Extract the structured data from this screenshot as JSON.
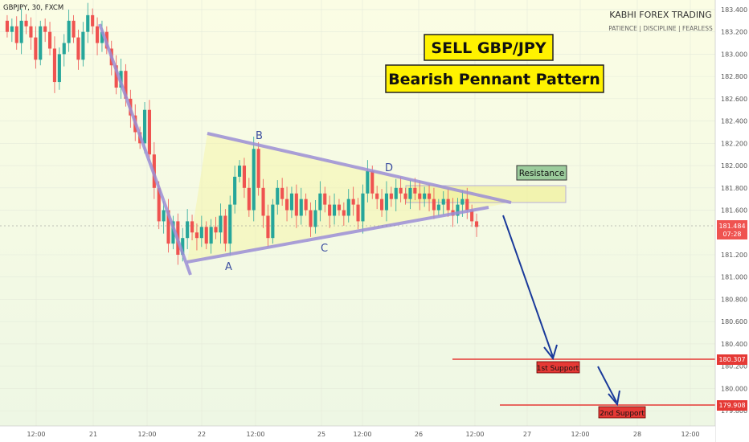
{
  "header": {
    "symbol": "GBPJPY, 30, FXCM"
  },
  "brand": {
    "name": "KABHI FOREX TRADING",
    "tagline": "PATIENCE | DISCIPLINE | FEARLESS"
  },
  "annotations": {
    "title1": "SELL GBP/JPY",
    "title2": "Bearish Pennant Pattern",
    "resistance": "Resistance",
    "support1": "1st Support",
    "support2": "2nd Support",
    "points": [
      "A",
      "B",
      "C",
      "D"
    ]
  },
  "price_tag": {
    "price": "181.484",
    "timer": "07:28"
  },
  "colors": {
    "up": "#26a69a",
    "down": "#ef5350",
    "support": "#e53935",
    "pennant": "#9c8fd6",
    "arrow": "#1a3a9a",
    "label_yellow": "#fff200",
    "resistance_bg": "#9ccc9c"
  },
  "chart_data": {
    "type": "candlestick",
    "ylim": [
      179.7,
      183.45
    ],
    "y_ticks": [
      "183.400",
      "183.200",
      "183.000",
      "182.800",
      "182.600",
      "182.400",
      "182.200",
      "182.000",
      "181.800",
      "181.600",
      "181.200",
      "181.000",
      "180.800",
      "180.600",
      "180.400",
      "180.200",
      "180.000",
      "179.800"
    ],
    "x_ticks": [
      "12:00",
      "21",
      "12:00",
      "22",
      "12:00",
      "25",
      "12:00",
      "26",
      "12:00",
      "27",
      "12:00",
      "28",
      "12:00"
    ],
    "support_levels": [
      {
        "name": "1st Support",
        "price": 180.307,
        "label": "180.307"
      },
      {
        "name": "2nd Support",
        "price": 179.908,
        "label": "179.908"
      }
    ],
    "resistance_zone": [
      181.7,
      181.85
    ],
    "current_price": 181.484,
    "ohlc_points": [
      [
        183.3,
        183.2
      ],
      [
        183.2,
        183.25
      ],
      [
        183.25,
        183.1
      ],
      [
        183.1,
        183.3
      ],
      [
        183.3,
        183.25
      ],
      [
        183.25,
        183.15
      ],
      [
        183.15,
        182.95
      ],
      [
        182.95,
        183.25
      ],
      [
        183.25,
        183.2
      ],
      [
        183.2,
        183.05
      ],
      [
        183.05,
        182.75
      ],
      [
        182.75,
        183.0
      ],
      [
        183.0,
        183.1
      ],
      [
        183.1,
        183.3
      ],
      [
        183.3,
        183.15
      ],
      [
        183.15,
        182.95
      ],
      [
        182.95,
        183.2
      ],
      [
        183.2,
        183.35
      ],
      [
        183.35,
        183.25
      ],
      [
        183.25,
        183.1
      ],
      [
        183.1,
        183.2
      ],
      [
        183.2,
        183.05
      ],
      [
        183.05,
        182.9
      ],
      [
        182.9,
        182.7
      ],
      [
        182.7,
        182.85
      ],
      [
        182.85,
        182.6
      ],
      [
        182.6,
        182.45
      ],
      [
        182.45,
        182.3
      ],
      [
        182.3,
        182.2
      ],
      [
        182.2,
        182.5
      ],
      [
        182.5,
        182.1
      ],
      [
        182.1,
        181.8
      ],
      [
        181.8,
        181.5
      ],
      [
        181.5,
        181.6
      ],
      [
        181.6,
        181.3
      ],
      [
        181.3,
        181.5
      ],
      [
        181.5,
        181.2
      ],
      [
        181.2,
        181.35
      ],
      [
        181.35,
        181.5
      ],
      [
        181.5,
        181.4
      ],
      [
        181.4,
        181.35
      ],
      [
        181.35,
        181.45
      ],
      [
        181.45,
        181.3
      ],
      [
        181.3,
        181.45
      ],
      [
        181.45,
        181.4
      ],
      [
        181.4,
        181.55
      ],
      [
        181.55,
        181.3
      ],
      [
        181.3,
        181.65
      ],
      [
        181.65,
        181.9
      ],
      [
        181.9,
        182.0
      ],
      [
        182.0,
        181.8
      ],
      [
        181.8,
        181.6
      ],
      [
        181.6,
        182.15
      ],
      [
        182.15,
        181.8
      ],
      [
        181.8,
        181.55
      ],
      [
        181.55,
        181.35
      ],
      [
        181.35,
        181.65
      ],
      [
        181.65,
        181.8
      ],
      [
        181.8,
        181.7
      ],
      [
        181.7,
        181.6
      ],
      [
        181.6,
        181.75
      ],
      [
        181.75,
        181.55
      ],
      [
        181.55,
        181.7
      ],
      [
        181.7,
        181.6
      ],
      [
        181.6,
        181.45
      ],
      [
        181.45,
        181.6
      ],
      [
        181.6,
        181.75
      ],
      [
        181.75,
        181.65
      ],
      [
        181.65,
        181.55
      ],
      [
        181.55,
        181.65
      ],
      [
        181.65,
        181.6
      ],
      [
        181.6,
        181.55
      ],
      [
        181.55,
        181.7
      ],
      [
        181.7,
        181.65
      ],
      [
        181.65,
        181.5
      ],
      [
        181.5,
        181.75
      ],
      [
        181.75,
        181.95
      ],
      [
        181.95,
        181.75
      ],
      [
        181.75,
        181.7
      ],
      [
        181.7,
        181.6
      ],
      [
        181.6,
        181.75
      ],
      [
        181.75,
        181.7
      ],
      [
        181.7,
        181.8
      ],
      [
        181.8,
        181.75
      ],
      [
        181.75,
        181.7
      ],
      [
        181.7,
        181.8
      ],
      [
        181.8,
        181.75
      ],
      [
        181.75,
        181.7
      ],
      [
        181.7,
        181.75
      ],
      [
        181.75,
        181.7
      ],
      [
        181.7,
        181.6
      ],
      [
        181.6,
        181.65
      ],
      [
        181.65,
        181.7
      ],
      [
        181.7,
        181.6
      ],
      [
        181.6,
        181.55
      ],
      [
        181.55,
        181.65
      ],
      [
        181.65,
        181.7
      ],
      [
        181.7,
        181.6
      ],
      [
        181.6,
        181.5
      ],
      [
        181.5,
        181.45
      ]
    ]
  }
}
